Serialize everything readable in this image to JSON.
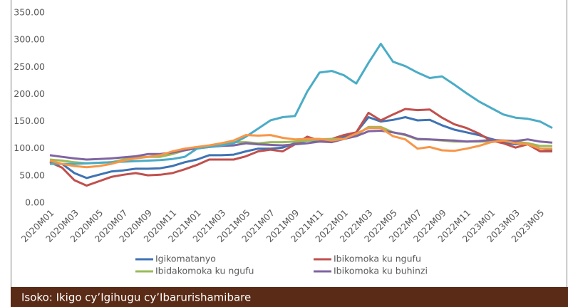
{
  "chart_data": {
    "type": "line",
    "categories": [
      "2020M01",
      null,
      "2020M03",
      null,
      "2020M05",
      null,
      "2020M07",
      null,
      "2020M09",
      null,
      "2020M11",
      null,
      "2021M01",
      null,
      "2021M03",
      null,
      "2021M05",
      null,
      "2021M07",
      null,
      "2021M09",
      null,
      "2021M11",
      null,
      "2022M01",
      null,
      "2022M03",
      null,
      "2022M05",
      null,
      "2022M07",
      null,
      "2022M09",
      null,
      "2022M11",
      null,
      "2023M01",
      null,
      "2023M03",
      null,
      "2023M05",
      null
    ],
    "series": [
      {
        "name": "Igikomatanyo",
        "color": "#3f73b4",
        "values": [
          75,
          72,
          55,
          46,
          52,
          58,
          60,
          63,
          63,
          64,
          68,
          75,
          80,
          88,
          88,
          89,
          95,
          100,
          100,
          102,
          110,
          115,
          115,
          117,
          122,
          130,
          158,
          150,
          153,
          158,
          152,
          153,
          143,
          135,
          130,
          125,
          118,
          112,
          108,
          110,
          100,
          98
        ]
      },
      {
        "name": "Ibikomoka ku ngufu",
        "color": "#c0504d",
        "values": [
          75,
          65,
          42,
          32,
          40,
          48,
          52,
          55,
          51,
          52,
          55,
          62,
          70,
          80,
          80,
          80,
          86,
          95,
          98,
          95,
          108,
          122,
          115,
          118,
          125,
          130,
          166,
          152,
          163,
          173,
          171,
          172,
          157,
          145,
          138,
          128,
          115,
          110,
          102,
          108,
          95,
          95
        ]
      },
      {
        "name": "Ibidakomoka ku ngufu",
        "color": "#9bbb59",
        "values": [
          80,
          78,
          75,
          73,
          74,
          75,
          80,
          85,
          85,
          85,
          90,
          97,
          102,
          105,
          108,
          112,
          112,
          110,
          112,
          112,
          113,
          115,
          117,
          118,
          118,
          125,
          140,
          140,
          130,
          125,
          117,
          117,
          115,
          113,
          113,
          113,
          113,
          115,
          113,
          110,
          105,
          105
        ]
      },
      {
        "name": "Ibikomoka ku buhinzi",
        "color": "#8064a2",
        "values": [
          88,
          85,
          82,
          80,
          81,
          82,
          84,
          86,
          90,
          90,
          93,
          97,
          101,
          103,
          105,
          106,
          110,
          108,
          107,
          106,
          108,
          110,
          113,
          112,
          118,
          123,
          132,
          133,
          130,
          126,
          118,
          117,
          116,
          115,
          113,
          114,
          116,
          115,
          114,
          117,
          113,
          111
        ]
      },
      {
        "color": "#4bacc6",
        "values": [
          72,
          72,
          72,
          73,
          74,
          75,
          76,
          77,
          78,
          79,
          81,
          85,
          100,
          103,
          106,
          110,
          122,
          137,
          152,
          158,
          160,
          205,
          240,
          243,
          235,
          220,
          258,
          293,
          260,
          252,
          240,
          230,
          233,
          218,
          202,
          187,
          175,
          163,
          157,
          155,
          150,
          138
        ]
      },
      {
        "color": "#f79646",
        "values": [
          78,
          72,
          68,
          66,
          68,
          72,
          78,
          82,
          85,
          88,
          95,
          100,
          103,
          106,
          110,
          115,
          125,
          124,
          125,
          120,
          117,
          118,
          118,
          115,
          118,
          128,
          138,
          138,
          123,
          117,
          100,
          103,
          97,
          96,
          100,
          105,
          112,
          115,
          110,
          108,
          100,
          100
        ]
      }
    ],
    "ylim": [
      0,
      350
    ],
    "yticks": [
      {
        "value": 0,
        "label": "0.00"
      },
      {
        "value": 50,
        "label": "50.00"
      },
      {
        "value": 100,
        "label": "100.00"
      },
      {
        "value": 150,
        "label": "150.00"
      },
      {
        "value": 200,
        "label": "200.00"
      },
      {
        "value": 250,
        "label": "250.00"
      },
      {
        "value": 300,
        "label": "300.00"
      },
      {
        "value": 350,
        "label": "350.00"
      }
    ],
    "grid": false,
    "source": "Isoko: Ikigo cy’Igihugu cy’Ibarurishamibare"
  }
}
